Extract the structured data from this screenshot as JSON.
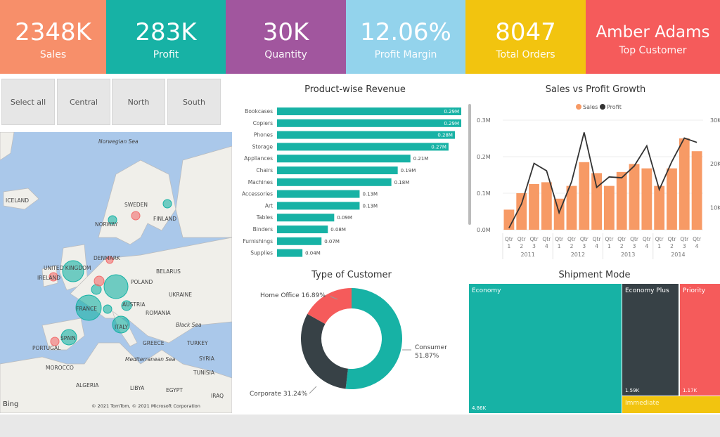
{
  "kpis": [
    {
      "value": "2348K",
      "label": "Sales",
      "color": "#f78f6a"
    },
    {
      "value": "283K",
      "label": "Profit",
      "color": "#17b2a5"
    },
    {
      "value": "30K",
      "label": "Quantity",
      "color": "#a1569e"
    },
    {
      "value": "12.06%",
      "label": "Profit Margin",
      "color": "#93d3ec"
    },
    {
      "value": "8047",
      "label": "Total Orders",
      "color": "#f2c40f"
    },
    {
      "value": "Amber Adams",
      "label": "Top Customer",
      "color": "#f55b5b"
    }
  ],
  "slicer": [
    "Select all",
    "Central",
    "North",
    "South"
  ],
  "map": {
    "labels": [
      "Norwegian Sea",
      "ICELAND",
      "SWEDEN",
      "FINLAND",
      "NORWAY",
      "UNITED KINGDOM",
      "DENMARK",
      "IRELAND",
      "BELARUS",
      "POLAND",
      "UKRAINE",
      "FRANCE",
      "AUSTRIA",
      "ROMANIA",
      "Black Sea",
      "ITALY",
      "SPAIN",
      "PORTUGAL",
      "GREECE",
      "TURKEY",
      "Mediterranean Sea",
      "MOROCCO",
      "TUNISIA",
      "SYRIA",
      "ALGERIA",
      "LIBYA",
      "EGYPT",
      "IRAQ"
    ],
    "attribution": "© 2021 TomTom, © 2021 Microsoft Corporation",
    "bing": "Bing"
  },
  "revenue": {
    "title": "Product-wise Revenue",
    "color": "#17b2a5",
    "items": [
      {
        "name": "Bookcases",
        "value": 0.29,
        "label": "0.29M"
      },
      {
        "name": "Copiers",
        "value": 0.29,
        "label": "0.29M"
      },
      {
        "name": "Phones",
        "value": 0.28,
        "label": "0.28M"
      },
      {
        "name": "Storage",
        "value": 0.27,
        "label": "0.27M"
      },
      {
        "name": "Appliances",
        "value": 0.21,
        "label": "0.21M"
      },
      {
        "name": "Chairs",
        "value": 0.19,
        "label": "0.19M"
      },
      {
        "name": "Machines",
        "value": 0.18,
        "label": "0.18M"
      },
      {
        "name": "Accessories",
        "value": 0.13,
        "label": "0.13M"
      },
      {
        "name": "Art",
        "value": 0.13,
        "label": "0.13M"
      },
      {
        "name": "Tables",
        "value": 0.09,
        "label": "0.09M"
      },
      {
        "name": "Binders",
        "value": 0.08,
        "label": "0.08M"
      },
      {
        "name": "Furnishings",
        "value": 0.07,
        "label": "0.07M"
      },
      {
        "name": "Supplies",
        "value": 0.04,
        "label": "0.04M"
      }
    ]
  },
  "customer": {
    "title": "Type of Customer",
    "segments": [
      {
        "name": "Consumer",
        "pct": 51.87,
        "label": "Consumer",
        "pct_label": "51.87%",
        "color": "#17b2a5"
      },
      {
        "name": "Corporate",
        "pct": 31.24,
        "label": "Corporate 31.24%",
        "color": "#374146"
      },
      {
        "name": "Home Office",
        "pct": 16.89,
        "label": "Home Office 16.89%",
        "color": "#f55b5b"
      }
    ]
  },
  "chart_data": {
    "type": "bar+line",
    "title": "Sales vs Profit Growth",
    "legend": [
      "Sales",
      "Profit"
    ],
    "legend_position": "top",
    "categories": [
      "Qtr 1",
      "Qtr 2",
      "Qtr 3",
      "Qtr 4",
      "Qtr 1",
      "Qtr 2",
      "Qtr 3",
      "Qtr 4",
      "Qtr 1",
      "Qtr 2",
      "Qtr 3",
      "Qtr 4",
      "Qtr 1",
      "Qtr 2",
      "Qtr 3",
      "Qtr 4"
    ],
    "years": [
      "2011",
      "2012",
      "2013",
      "2014"
    ],
    "series": [
      {
        "name": "Sales",
        "type": "bar",
        "color": "#f79a65",
        "unit": "M",
        "values": [
          0.055,
          0.1,
          0.125,
          0.13,
          0.085,
          0.12,
          0.185,
          0.155,
          0.12,
          0.158,
          0.18,
          0.168,
          0.12,
          0.168,
          0.25,
          0.215
        ]
      },
      {
        "name": "Profit",
        "type": "line",
        "color": "#333333",
        "unit": "K",
        "values": [
          5.3,
          10.8,
          20.1,
          18.4,
          8.8,
          15.9,
          27.2,
          14.6,
          17.0,
          16.8,
          19.5,
          24.1,
          14.1,
          20.5,
          25.9,
          24.9
        ]
      }
    ],
    "y_ticks": [
      "0.0M",
      "0.1M",
      "0.2M",
      "0.3M"
    ],
    "ylim": [
      0,
      0.3
    ],
    "y2_ticks": [
      "10K",
      "20K",
      "30K"
    ],
    "y2lim": [
      4.9,
      30
    ],
    "grid": true
  },
  "shipment": {
    "title": "Shipment Mode",
    "items": [
      {
        "name": "Economy",
        "value": "4.86K",
        "color": "#17b2a5"
      },
      {
        "name": "Economy Plus",
        "value": "1.59K",
        "color": "#374146"
      },
      {
        "name": "Priority",
        "value": "1.17K",
        "color": "#f55b5b"
      },
      {
        "name": "Immediate",
        "value": "",
        "color": "#f2c40f"
      }
    ]
  }
}
